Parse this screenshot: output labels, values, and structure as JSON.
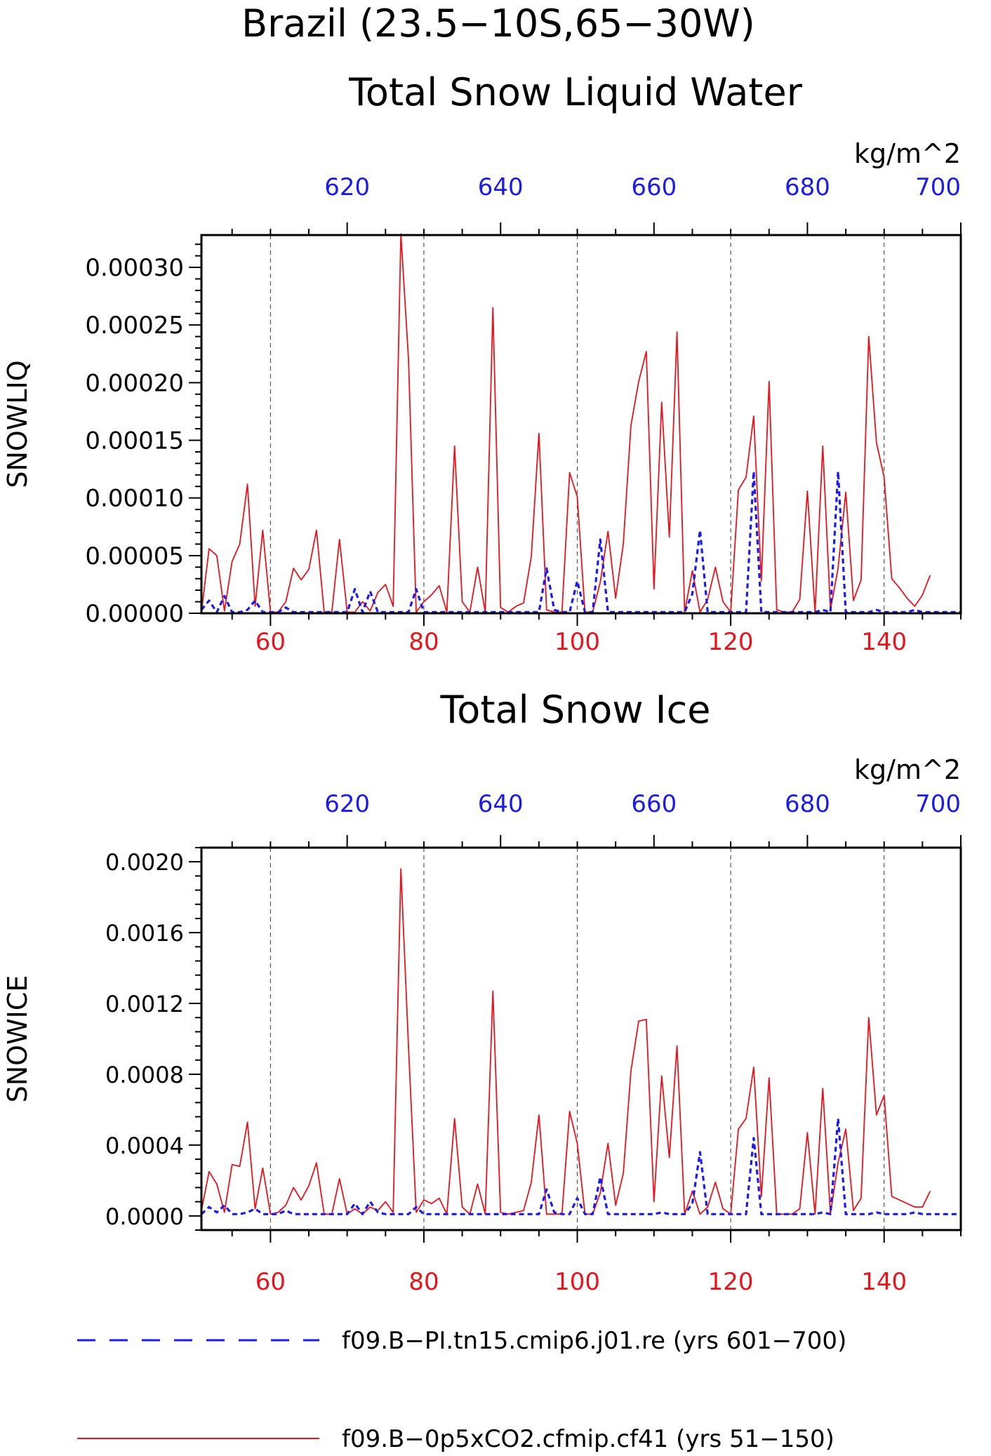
{
  "figure_title": "Brazil (23.5−10S,65−30W)",
  "colors": {
    "red": "#e8141b",
    "blue": "#1c1ce8",
    "axis": "#000000",
    "grid": "#555555"
  },
  "legend": [
    {
      "label": "f09.B−PI.tn15.cmip6.j01.re (yrs 601−700)",
      "color": "#1c1ce8",
      "style": "dashed"
    },
    {
      "label": "f09.B−0p5xCO2.cfmip.cf41 (yrs 51−150)",
      "color": "#e8141b",
      "style": "solid"
    }
  ],
  "chart_data": [
    {
      "type": "line",
      "title": "Total Snow Liquid Water",
      "ylabel": "SNOWLIQ",
      "units": "kg/m^2",
      "ylim": [
        0,
        0.000328
      ],
      "yticks": [
        "0.00000",
        "0.00005",
        "0.00010",
        "0.00015",
        "0.00020",
        "0.00025",
        "0.00030"
      ],
      "ytick_values": [
        0,
        5e-05,
        0.0001,
        0.00015,
        0.0002,
        0.00025,
        0.0003
      ],
      "x_bottom": {
        "range": [
          51,
          150
        ],
        "ticks": [
          "60",
          "80",
          "100",
          "120",
          "140"
        ],
        "tick_values": [
          60,
          80,
          100,
          120,
          140
        ],
        "color": "red"
      },
      "x_top": {
        "range": [
          601,
          700
        ],
        "ticks": [
          "620",
          "640",
          "660",
          "680",
          "700"
        ],
        "tick_values": [
          620,
          640,
          660,
          680,
          700
        ],
        "color": "blue"
      },
      "grid": "vertical dashed at major x ticks",
      "series": [
        {
          "axis": "bottom",
          "color": "#e8141b",
          "style": "solid",
          "x_start": 51,
          "values": [
            1e-06,
            5.6e-05,
            5e-05,
            2e-06,
            4.5e-05,
            6e-05,
            0.000112,
            6e-06,
            7.2e-05,
            1e-06,
            1e-06,
            1e-05,
            3.9e-05,
            2.9e-05,
            3.8e-05,
            7.2e-05,
            1e-06,
            1e-06,
            6.4e-05,
            1e-06,
            1e-06,
            1e-05,
            2e-06,
            1.8e-05,
            2.5e-05,
            6e-06,
            0.000329,
            0.00022,
            1e-06,
            1e-05,
            1.6e-05,
            2.4e-05,
            1e-06,
            0.000145,
            1e-05,
            1e-06,
            4e-05,
            1e-06,
            0.000265,
            5e-06,
            1e-06,
            6e-06,
            9e-06,
            4.9e-05,
            0.000156,
            3e-06,
            1e-06,
            1e-06,
            0.000122,
            0.000101,
            1e-06,
            1e-06,
            2.7e-05,
            7.1e-05,
            1.3e-05,
            6e-05,
            0.000163,
            0.000201,
            0.000227,
            2.1e-05,
            0.000183,
            6.6e-05,
            0.000244,
            1e-06,
            3.7e-05,
            1e-06,
            1.2e-05,
            4e-05,
            1e-05,
            1e-06,
            0.000107,
            0.000118,
            0.000171,
            2.8e-05,
            0.000201,
            3e-06,
            1e-06,
            1e-06,
            1.2e-05,
            0.000106,
            1e-06,
            0.000145,
            3e-06,
            3.9e-05,
            0.000105,
            1.1e-05,
            2.9e-05,
            0.00024,
            0.000148,
            0.000118,
            3e-05,
            2.2e-05,
            1.3e-05,
            6e-06,
            1.6e-05,
            3.3e-05
          ]
        },
        {
          "axis": "top",
          "color": "#1c1ce8",
          "style": "dashed",
          "x_start": 601,
          "values": [
            3e-06,
            1.1e-05,
            1e-06,
            1.5e-05,
            1e-06,
            1e-06,
            3e-06,
            1.1e-05,
            1e-06,
            1e-06,
            1e-06,
            5e-06,
            1e-06,
            1e-06,
            1e-06,
            1e-06,
            1e-06,
            1e-06,
            1e-06,
            1e-06,
            2.1e-05,
            1e-06,
            1.9e-05,
            1e-06,
            1e-06,
            1e-06,
            1e-06,
            1e-06,
            2.1e-05,
            1e-06,
            1e-06,
            1e-06,
            1e-06,
            1e-06,
            1e-06,
            1e-06,
            1e-06,
            1e-06,
            1e-06,
            1e-06,
            1e-06,
            1e-06,
            1e-06,
            1e-06,
            1e-06,
            3.9e-05,
            3e-06,
            1e-06,
            1e-06,
            2.8e-05,
            1e-06,
            1e-06,
            6.4e-05,
            1e-06,
            1e-06,
            1e-06,
            1e-06,
            1e-06,
            1e-06,
            1e-06,
            1e-06,
            1e-06,
            1e-06,
            1e-06,
            1.7e-05,
            7.2e-05,
            1e-06,
            1e-06,
            1e-06,
            1e-06,
            1e-06,
            1e-06,
            0.000123,
            1e-06,
            1e-06,
            1e-06,
            1e-06,
            1e-06,
            1e-06,
            1e-06,
            1e-06,
            3e-06,
            1e-06,
            0.000123,
            1e-06,
            1e-06,
            1e-06,
            1e-06,
            3e-06,
            1e-06,
            1e-06,
            1e-06,
            1e-06,
            3e-06,
            1e-06,
            1e-06,
            1e-06,
            1e-06,
            1e-06,
            1e-06
          ]
        }
      ]
    },
    {
      "type": "line",
      "title": "Total Snow Ice",
      "ylabel": "SNOWICE",
      "units": "kg/m^2",
      "ylim": [
        -8e-05,
        0.00208
      ],
      "yticks": [
        "0.0000",
        "0.0004",
        "0.0008",
        "0.0012",
        "0.0016",
        "0.0020"
      ],
      "ytick_values": [
        0,
        0.0004,
        0.0008,
        0.0012,
        0.0016,
        0.002
      ],
      "x_bottom": {
        "range": [
          51,
          150
        ],
        "ticks": [
          "60",
          "80",
          "100",
          "120",
          "140"
        ],
        "tick_values": [
          60,
          80,
          100,
          120,
          140
        ],
        "color": "red"
      },
      "x_top": {
        "range": [
          601,
          700
        ],
        "ticks": [
          "620",
          "640",
          "660",
          "680",
          "700"
        ],
        "tick_values": [
          620,
          640,
          660,
          680,
          700
        ],
        "color": "blue"
      },
      "grid": "vertical dashed at major x ticks",
      "series": [
        {
          "axis": "bottom",
          "color": "#e8141b",
          "style": "solid",
          "x_start": 51,
          "values": [
            3e-05,
            0.00025,
            0.00018,
            2e-05,
            0.00029,
            0.00028,
            0.00053,
            4e-05,
            0.00027,
            1e-05,
            2e-05,
            6e-05,
            0.00016,
            9e-05,
            0.00017,
            0.0003,
            1e-05,
            1e-05,
            0.00021,
            1e-05,
            4e-05,
            1e-05,
            5e-05,
            3e-05,
            8e-05,
            2e-05,
            0.00196,
            0.00095,
            2e-05,
            9e-05,
            7e-05,
            0.0001,
            1e-05,
            0.00055,
            5e-05,
            1e-05,
            0.00018,
            1e-05,
            0.00127,
            2e-05,
            1e-05,
            2e-05,
            3e-05,
            0.00019,
            0.00057,
            1e-05,
            1e-05,
            1e-05,
            0.00059,
            0.00041,
            1e-05,
            1e-05,
            0.00013,
            0.00041,
            6e-05,
            0.00024,
            0.00082,
            0.0011,
            0.00111,
            8e-05,
            0.00079,
            0.00033,
            0.00096,
            1e-05,
            0.00014,
            1e-05,
            5e-05,
            0.00019,
            4e-05,
            1e-05,
            0.00049,
            0.00055,
            0.00084,
            0.00011,
            0.00078,
            1e-05,
            1e-05,
            1e-05,
            4e-05,
            0.00047,
            1e-05,
            0.00072,
            1e-05,
            0.0003,
            0.00049,
            3e-05,
            0.0001,
            0.00112,
            0.00057,
            0.00068,
            0.00011,
            9e-05,
            7e-05,
            5e-05,
            5e-05,
            0.00014
          ]
        },
        {
          "axis": "top",
          "color": "#1c1ce8",
          "style": "dashed",
          "x_start": 601,
          "values": [
            1e-05,
            5e-05,
            2e-05,
            6e-05,
            1e-05,
            1e-05,
            2e-05,
            4e-05,
            1e-05,
            1e-05,
            1e-05,
            3e-05,
            1e-05,
            1e-05,
            1e-05,
            1e-05,
            1e-05,
            1e-05,
            1e-05,
            1e-05,
            7e-05,
            1e-05,
            8e-05,
            2e-05,
            1e-05,
            1e-05,
            1e-05,
            1e-05,
            5e-05,
            1e-05,
            1e-05,
            1e-05,
            1e-05,
            1e-05,
            1e-05,
            1e-05,
            1e-05,
            1e-05,
            1e-05,
            1e-05,
            1e-05,
            1e-05,
            1e-05,
            1e-05,
            1e-05,
            0.00015,
            2e-05,
            1e-05,
            1e-05,
            0.0001,
            1e-05,
            1e-05,
            0.00022,
            1e-05,
            1e-05,
            1e-05,
            1e-05,
            1e-05,
            1e-05,
            1e-05,
            2e-05,
            1e-05,
            1e-05,
            1e-05,
            7e-05,
            0.00036,
            1e-05,
            1e-05,
            1e-05,
            1e-05,
            1e-05,
            1e-05,
            0.00044,
            1e-05,
            1e-05,
            1e-05,
            1e-05,
            1e-05,
            1e-05,
            1e-05,
            1e-05,
            2e-05,
            1e-05,
            0.00055,
            1e-05,
            1e-05,
            1e-05,
            1e-05,
            2e-05,
            1e-05,
            1e-05,
            1e-05,
            1e-05,
            2e-05,
            1e-05,
            1e-05,
            1e-05,
            1e-05,
            1e-05,
            1e-05
          ]
        }
      ]
    }
  ]
}
